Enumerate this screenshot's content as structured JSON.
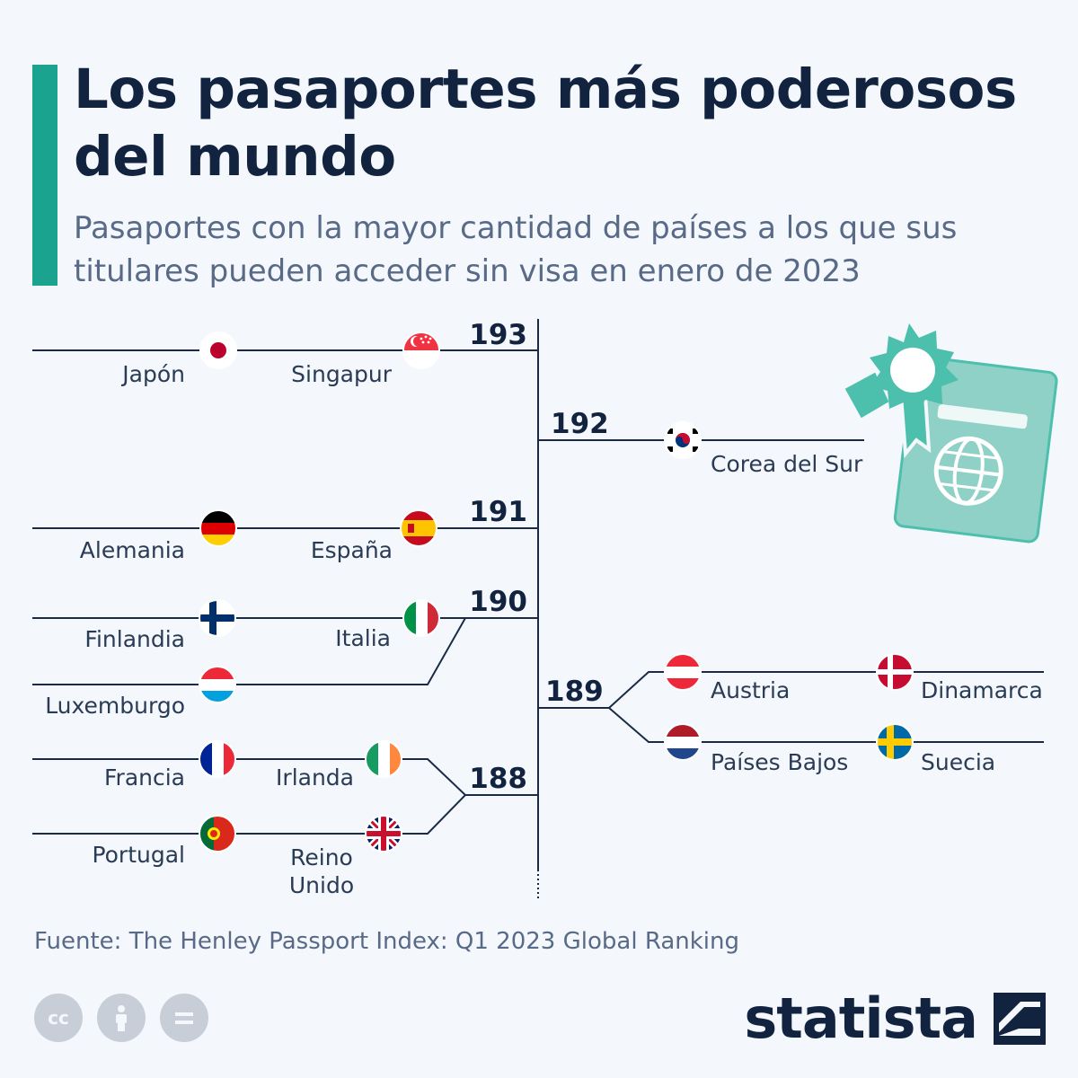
{
  "title": "Los pasaportes más poderosos del mundo",
  "subtitle": "Pasaportes con la mayor cantidad de países a los que sus titulares pueden acceder sin visa en enero de 2023",
  "chart_data": {
    "type": "bracket",
    "metric": "Países accesibles sin visa",
    "ranks": [
      {
        "value": 193,
        "side": "left",
        "countries": [
          "Japón",
          "Singapur"
        ]
      },
      {
        "value": 192,
        "side": "right",
        "countries": [
          "Corea del Sur"
        ]
      },
      {
        "value": 191,
        "side": "left",
        "countries": [
          "Alemania",
          "España"
        ]
      },
      {
        "value": 190,
        "side": "left",
        "countries": [
          "Finlandia",
          "Italia",
          "Luxemburgo"
        ]
      },
      {
        "value": 189,
        "side": "right",
        "countries": [
          "Austria",
          "Dinamarca",
          "Países Bajos",
          "Suecia"
        ]
      },
      {
        "value": 188,
        "side": "left",
        "countries": [
          "Francia",
          "Irlanda",
          "Portugal",
          "Reino Unido"
        ]
      }
    ],
    "colors": {
      "line": "#1b2b47",
      "label": "#12233f",
      "country_text": "#2a3b55"
    }
  },
  "source": "Fuente: The Henley Passport Index: Q1 2023 Global Ranking",
  "footer": {
    "license_icons": [
      "cc-icon",
      "attribution-icon",
      "no-derivatives-icon"
    ],
    "brand": "statista"
  },
  "colors": {
    "accent": "#1aa38f",
    "title": "#12233f",
    "muted": "#586a87",
    "passport": "#8fd1c6",
    "seal": "#4cbfad"
  }
}
